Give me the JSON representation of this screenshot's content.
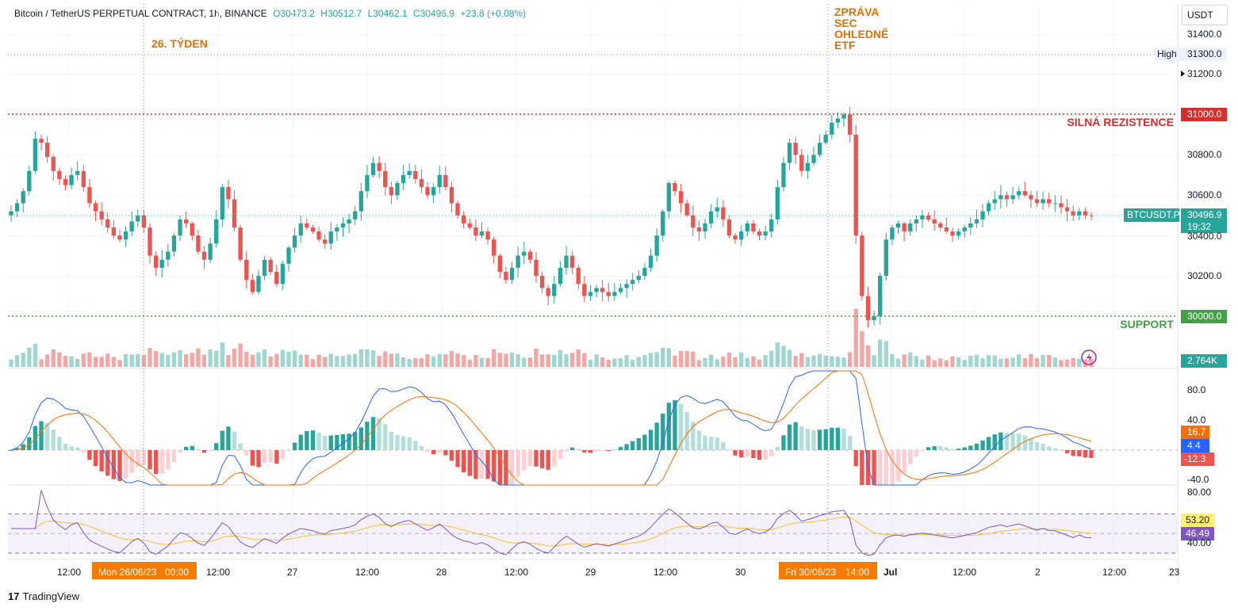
{
  "header": {
    "symbol": "Bitcoin / TetherUS PERPETUAL CONTRACT, 1h, BINANCE",
    "open": "O30473.2",
    "high": "H30512.7",
    "low": "L30462.1",
    "close": "C30496.9",
    "change": "+23.8 (+0.08%)"
  },
  "currency": "USDT",
  "branding": "TradingView",
  "annotations": {
    "week": "26. TÝDEN",
    "news": [
      "ZPRÁVA",
      "SEC",
      "OHLEDNĚ",
      "ETF"
    ],
    "resistance": "SILNÁ REZISTENCE",
    "support": "SUPPORT"
  },
  "price_axis": {
    "ticks": [
      "31400.0",
      "31200.0",
      "30800.0",
      "30600.0",
      "30400.0",
      "30200.0"
    ],
    "high_label": "High",
    "high_value": "31300.0",
    "resistance_value": "31000.0",
    "support_value": "30000.0",
    "symbol_label": "BTCUSDT.P",
    "last_price": "30496.9",
    "countdown": "19:32",
    "volume_value": "2.764K"
  },
  "macd_axis": {
    "ticks": [
      "80.0",
      "40.0",
      "-40.0"
    ],
    "signal_value": "16.7",
    "macd_value": "4.4",
    "hist_value": "-12.3"
  },
  "rsi_axis": {
    "ticks": [
      "80.00",
      "40.00"
    ],
    "ma_value": "53.20",
    "rsi_value": "46.49"
  },
  "time_axis": {
    "ticks": [
      "12:00",
      "12:00",
      "27",
      "12:00",
      "28",
      "12:00",
      "29",
      "12:00",
      "30",
      "Jul",
      "12:00",
      "2",
      "12:00",
      "23"
    ],
    "highlight_left": "Mon 26/06/23",
    "highlight_left_time": "00:00",
    "highlight_right": "Fri 30/06/23",
    "highlight_right_time": "14:00"
  },
  "colors": {
    "up": "#26a69a",
    "down": "#ef5350",
    "resistance": "#d32f2f",
    "support": "#43a047",
    "annotation": "#e07000",
    "macd_line": "#2962ff",
    "signal_line": "#ff6d00",
    "rsi_line": "#7e57c2",
    "rsi_ma": "#fbc02d"
  },
  "chart_data": {
    "type": "candlestick",
    "timeframe": "1h",
    "price_range": [
      29850,
      31450
    ],
    "key_levels": {
      "resistance": 31000,
      "support": 30000,
      "high": 31300
    },
    "closes": [
      30520,
      30560,
      30620,
      30720,
      30880,
      30860,
      30790,
      30720,
      30680,
      30650,
      30700,
      30720,
      30640,
      30560,
      30520,
      30480,
      30440,
      30400,
      30380,
      30420,
      30470,
      30500,
      30440,
      30300,
      30240,
      30280,
      30320,
      30400,
      30480,
      30460,
      30400,
      30320,
      30280,
      30360,
      30480,
      30640,
      30580,
      30440,
      30280,
      30180,
      30120,
      30200,
      30280,
      30220,
      30160,
      30260,
      30340,
      30400,
      30460,
      30440,
      30420,
      30380,
      30360,
      30420,
      30440,
      30460,
      30480,
      30520,
      30620,
      30700,
      30760,
      30720,
      30640,
      30600,
      30660,
      30700,
      30720,
      30680,
      30640,
      30600,
      30640,
      30700,
      30640,
      30560,
      30500,
      30460,
      30440,
      30400,
      30420,
      30380,
      30300,
      30220,
      30180,
      30240,
      30300,
      30320,
      30280,
      30200,
      30140,
      30100,
      30160,
      30240,
      30300,
      30240,
      30160,
      30100,
      30120,
      30140,
      30120,
      30100,
      30120,
      30140,
      30160,
      30180,
      30200,
      30240,
      30300,
      30400,
      30520,
      30660,
      30620,
      30560,
      30500,
      30440,
      30420,
      30460,
      30520,
      30540,
      30480,
      30400,
      30380,
      30420,
      30460,
      30420,
      30400,
      30420,
      30480,
      30640,
      30760,
      30860,
      30800,
      30720,
      30760,
      30800,
      30860,
      30900,
      30960,
      30980,
      31000,
      30900,
      30400,
      30100,
      29980,
      30000,
      30200,
      30380,
      30440,
      30460,
      30420,
      30460,
      30480,
      30500,
      30480,
      30460,
      30440,
      30420,
      30400,
      30420,
      30440,
      30460,
      30480,
      30520,
      30560,
      30580,
      30600,
      30580,
      30600,
      30620,
      30600,
      30580,
      30560,
      30580,
      30560,
      30560,
      30540,
      30520,
      30500,
      30520,
      30500,
      30497
    ]
  }
}
